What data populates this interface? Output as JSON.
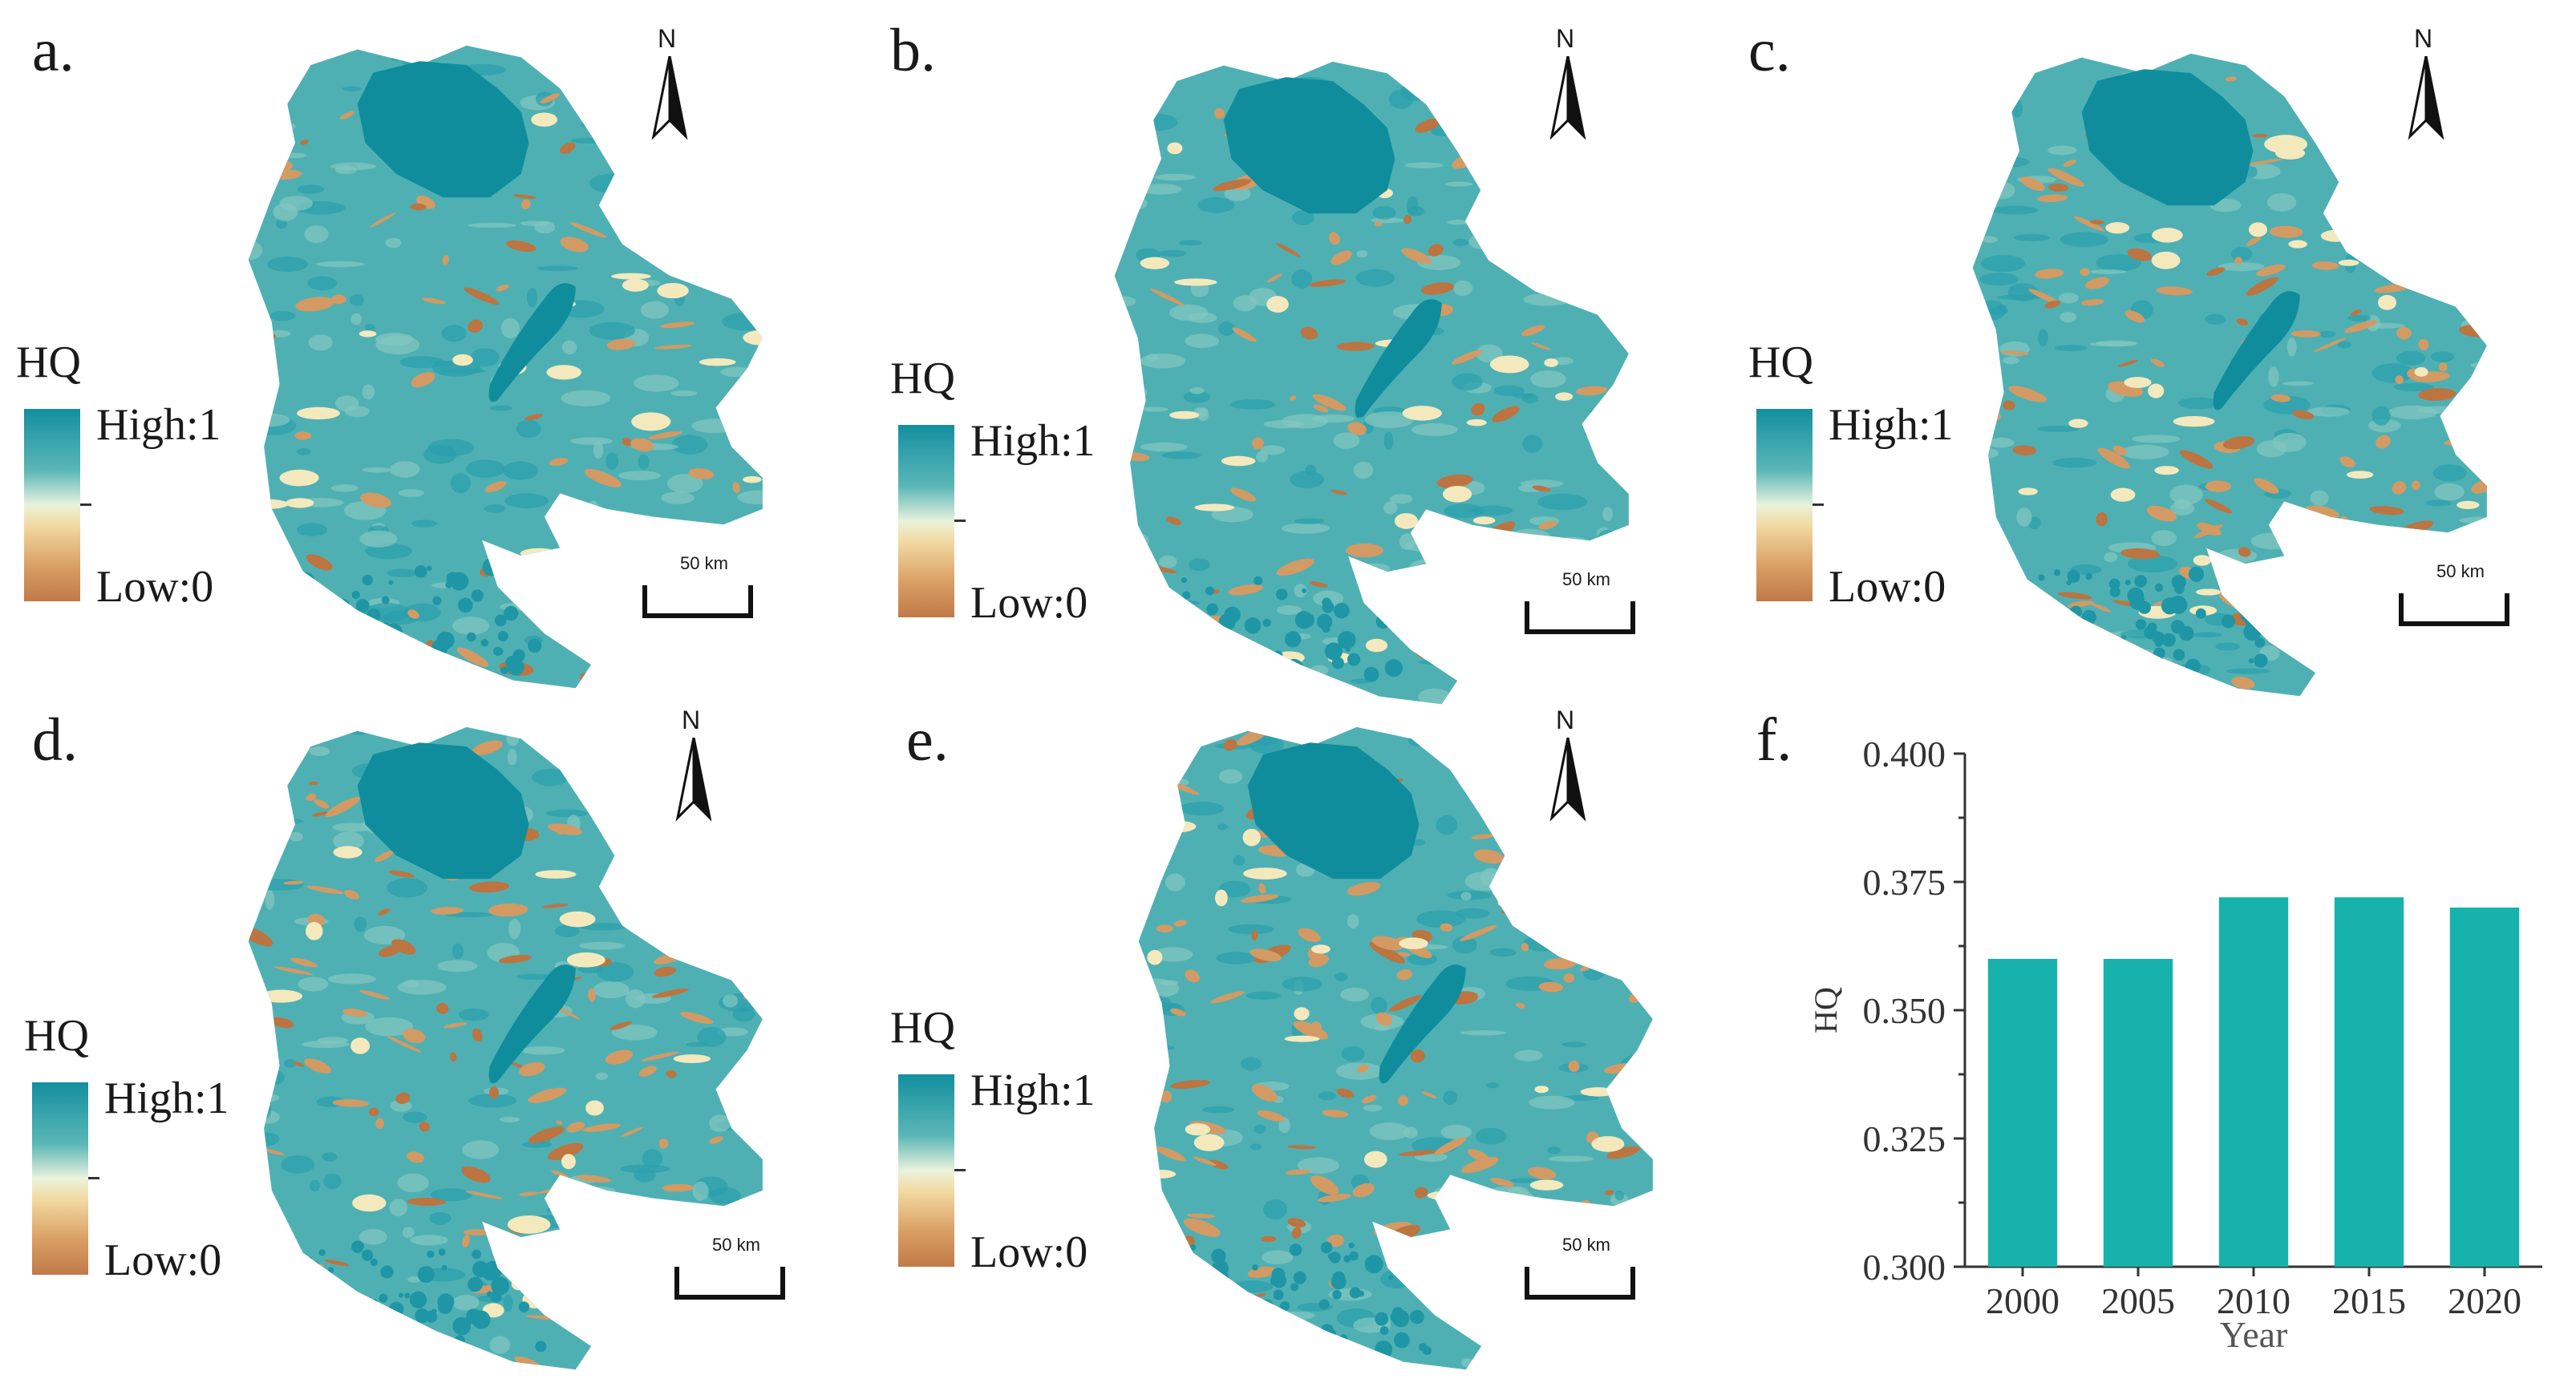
{
  "colors": {
    "water": "#0f8d9c",
    "high": "#4fb0b3",
    "mid": "#83c7c0",
    "light": "#f4e9bd",
    "low": "#d39a64",
    "low_dark": "#bc7440",
    "bar": "#17b2ac"
  },
  "panels": [
    {
      "label": "a.",
      "legend_title": "HQ",
      "high": "High:1",
      "low": "Low:0",
      "north": "N",
      "scale": "50 km"
    },
    {
      "label": "b.",
      "legend_title": "HQ",
      "high": "High:1",
      "low": "Low:0",
      "north": "N",
      "scale": "50 km"
    },
    {
      "label": "c.",
      "legend_title": "HQ",
      "high": "High:1",
      "low": "Low:0",
      "north": "N",
      "scale": "50 km"
    },
    {
      "label": "d.",
      "legend_title": "HQ",
      "high": "High:1",
      "low": "Low:0",
      "north": "N",
      "scale": "50 km"
    },
    {
      "label": "e.",
      "legend_title": "HQ",
      "high": "High:1",
      "low": "Low:0",
      "north": "N",
      "scale": "50 km"
    }
  ],
  "chart_panel_label": "f.",
  "chart_data": {
    "type": "bar",
    "categories": [
      "2000",
      "2005",
      "2010",
      "2015",
      "2020"
    ],
    "values": [
      0.36,
      0.36,
      0.372,
      0.372,
      0.37
    ],
    "xlabel": "Year",
    "ylabel": "HQ",
    "ylim": [
      0.3,
      0.4
    ],
    "yticks": [
      "0.300",
      "0.325",
      "0.350",
      "0.375",
      "0.400"
    ],
    "grid": false
  }
}
